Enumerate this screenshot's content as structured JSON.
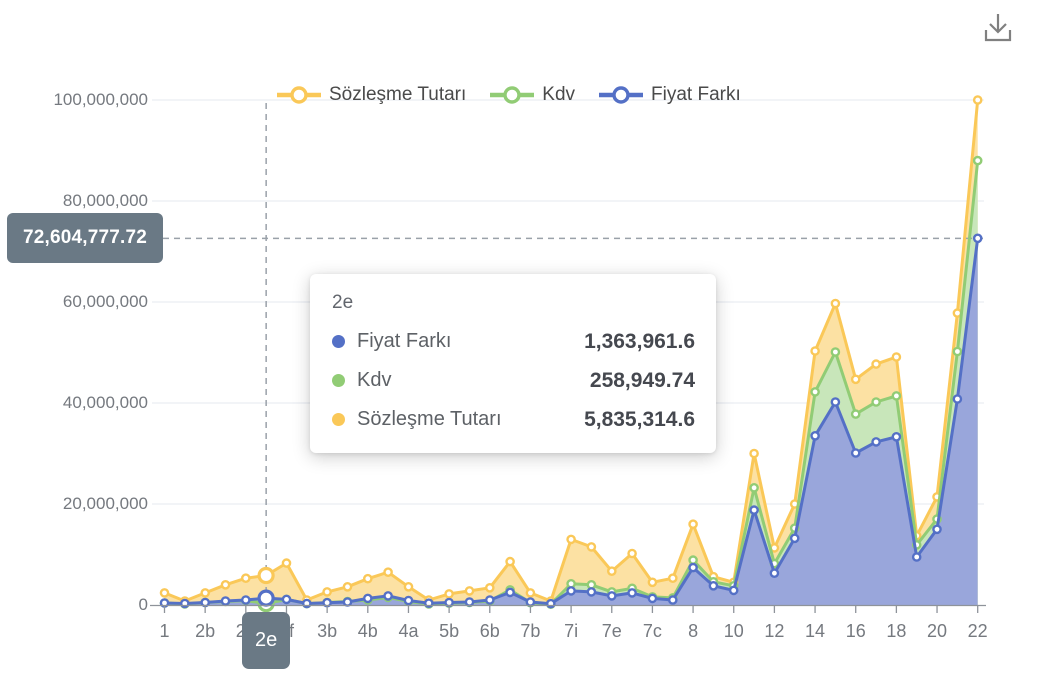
{
  "toolbar": {
    "download_tooltip": "save as image"
  },
  "axis_pointer": {
    "x_label": "2e",
    "x_index": 5,
    "y_label": "72,604,777.72",
    "y_value": 72604777.72,
    "badge_color": "#6a7985"
  },
  "tooltip": {
    "title": "2e",
    "rows": [
      {
        "label": "Fiyat Farkı",
        "value": "1,363,961.6",
        "color": "#5470C6"
      },
      {
        "label": "Kdv",
        "value": "258,949.74",
        "color": "#91CC75"
      },
      {
        "label": "Sözleşme Tutarı",
        "value": "5,835,314.6",
        "color": "#FAC858"
      }
    ]
  },
  "chart_data": {
    "type": "area",
    "title": "",
    "legend_position": "top",
    "grid": "horizontal gridlines only",
    "ylim": [
      0,
      100000000
    ],
    "y_ticks": [
      "0",
      "20,000,000",
      "40,000,000",
      "60,000,000",
      "80,000,000",
      "100,000,000"
    ],
    "y_tick_values": [
      0,
      20000000,
      40000000,
      60000000,
      80000000,
      100000000
    ],
    "categories": [
      "1",
      "",
      "2b",
      "",
      "2d",
      "2e",
      "2f",
      "",
      "3b",
      "",
      "4b",
      "",
      "4a",
      "",
      "5b",
      "",
      "6b",
      "",
      "7b",
      "",
      "7i",
      "",
      "7e",
      "",
      "7c",
      "",
      "8",
      "",
      "10",
      "",
      "12",
      "",
      "14",
      "",
      "16",
      "",
      "18",
      "",
      "20",
      "",
      "22"
    ],
    "highlighted_category": "2e",
    "series": [
      {
        "name": "Sözleşme Tutarı",
        "color": "#FAC858",
        "fill": "#FCE1A3",
        "values": [
          2400000,
          800000,
          2400000,
          4000000,
          5300000,
          5835314.6,
          8300000,
          1000000,
          2600000,
          3600000,
          5200000,
          6500000,
          3600000,
          1000000,
          2200000,
          2800000,
          3400000,
          8600000,
          2400000,
          800000,
          13000000,
          11500000,
          6700000,
          10200000,
          4500000,
          5300000,
          16000000,
          5600000,
          4500000,
          30000000,
          11300000,
          20000000,
          50300000,
          59700000,
          44700000,
          47700000,
          49100000,
          13700000,
          21400000,
          57800000,
          100000000
        ]
      },
      {
        "name": "Kdv",
        "color": "#91CC75",
        "fill": "#C8E6BA",
        "values": [
          400000,
          200000,
          500000,
          700000,
          900000,
          258949.74,
          1100000,
          250000,
          500000,
          700000,
          1000000,
          1500000,
          700000,
          200000,
          350000,
          500000,
          800000,
          3000000,
          450000,
          150000,
          4200000,
          4000000,
          2600000,
          3300000,
          1600000,
          1400000,
          8900000,
          4600000,
          3800000,
          23200000,
          8200000,
          15200000,
          42200000,
          50100000,
          37800000,
          40200000,
          41400000,
          11900000,
          17000000,
          50200000,
          88000000
        ]
      },
      {
        "name": "Fiyat Farkı",
        "color": "#5470C6",
        "fill": "#99A6DB",
        "values": [
          400000,
          300000,
          500000,
          800000,
          1000000,
          1363961.6,
          1100000,
          300000,
          450000,
          600000,
          1300000,
          1800000,
          900000,
          350000,
          500000,
          600000,
          1000000,
          2500000,
          600000,
          250000,
          2800000,
          2600000,
          1800000,
          2400000,
          1300000,
          1000000,
          7400000,
          3800000,
          2900000,
          18800000,
          6300000,
          13200000,
          33500000,
          40200000,
          30100000,
          32300000,
          33300000,
          9500000,
          15000000,
          40800000,
          72604777.72
        ]
      }
    ]
  }
}
